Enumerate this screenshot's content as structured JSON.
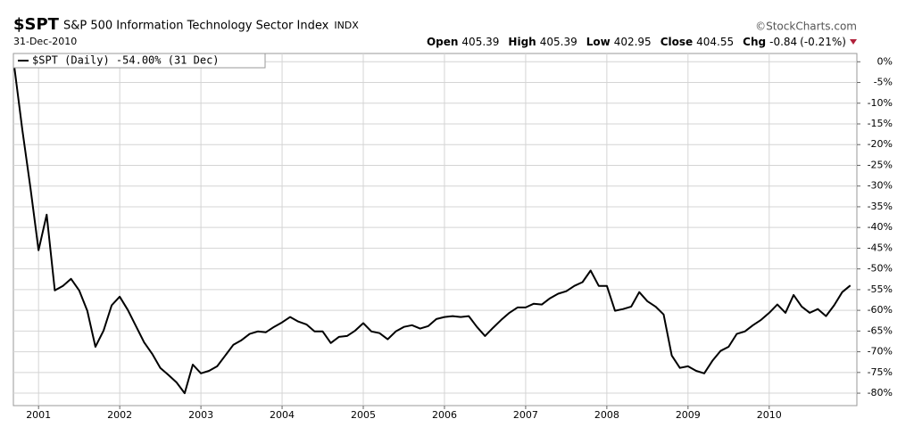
{
  "chart_data": {
    "type": "line",
    "symbol": "$SPT",
    "title": "S&P 500 Information Technology Sector Index",
    "exchange": "INDX",
    "source": "©StockCharts.com",
    "date": "31-Dec-2010",
    "quote": [
      {
        "label": "Open",
        "value": 405.39
      },
      {
        "label": "High",
        "value": 405.39
      },
      {
        "label": "Low",
        "value": 402.95
      },
      {
        "label": "Close",
        "value": 404.55
      },
      {
        "label": "Chg",
        "value": -0.84
      }
    ],
    "change_pct": "(-0.21%)",
    "x": [
      2000.7,
      2000.8,
      2000.9,
      2001.0,
      2001.1,
      2001.2,
      2001.3,
      2001.4,
      2001.5,
      2001.6,
      2001.7,
      2001.8,
      2001.9,
      2002.0,
      2002.1,
      2002.2,
      2002.3,
      2002.4,
      2002.5,
      2002.6,
      2002.7,
      2002.8,
      2002.9,
      2003.0,
      2003.1,
      2003.2,
      2003.3,
      2003.4,
      2003.5,
      2003.6,
      2003.7,
      2003.8,
      2003.9,
      2004.0,
      2004.1,
      2004.2,
      2004.3,
      2004.4,
      2004.5,
      2004.6,
      2004.7,
      2004.8,
      2004.9,
      2005.0,
      2005.1,
      2005.2,
      2005.3,
      2005.4,
      2005.5,
      2005.6,
      2005.7,
      2005.8,
      2005.9,
      2006.0,
      2006.1,
      2006.2,
      2006.3,
      2006.4,
      2006.5,
      2006.6,
      2006.7,
      2006.8,
      2006.9,
      2007.0,
      2007.1,
      2007.2,
      2007.3,
      2007.4,
      2007.5,
      2007.6,
      2007.7,
      2007.8,
      2007.9,
      2008.0,
      2008.1,
      2008.2,
      2008.3,
      2008.4,
      2008.5,
      2008.6,
      2008.7,
      2008.8,
      2008.9,
      2009.0,
      2009.1,
      2009.2,
      2009.3,
      2009.4,
      2009.5,
      2009.6,
      2009.7,
      2009.8,
      2009.9,
      2010.0,
      2010.1,
      2010.2,
      2010.3,
      2010.4,
      2010.5,
      2010.6,
      2010.7,
      2010.8,
      2010.9,
      2011.0
    ],
    "series": [
      {
        "name": "$SPT (Daily) -54.00% (31 Dec)",
        "color": "#000000",
        "values": [
          -1,
          -16.4,
          -30.4,
          -45.5,
          -36.9,
          -55.2,
          -54.1,
          -52.4,
          -55.2,
          -60.1,
          -68.8,
          -64.9,
          -58.8,
          -56.7,
          -59.9,
          -63.8,
          -67.7,
          -70.5,
          -73.9,
          -75.6,
          -77.4,
          -80.0,
          -73.1,
          -75.2,
          -74.6,
          -73.5,
          -70.9,
          -68.3,
          -67.2,
          -65.7,
          -65.1,
          -65.3,
          -64.0,
          -62.9,
          -61.6,
          -62.7,
          -63.4,
          -65.1,
          -65.1,
          -67.9,
          -66.4,
          -66.2,
          -64.9,
          -63.1,
          -65.1,
          -65.5,
          -67.0,
          -65.1,
          -64.0,
          -63.6,
          -64.4,
          -63.8,
          -62.1,
          -61.6,
          -61.4,
          -61.6,
          -61.4,
          -64.0,
          -66.2,
          -64.2,
          -62.3,
          -60.6,
          -59.3,
          -59.3,
          -58.4,
          -58.6,
          -57.1,
          -56.0,
          -55.4,
          -54.1,
          -53.2,
          -50.4,
          -54.1,
          -54.1,
          -60.1,
          -59.7,
          -59.1,
          -55.6,
          -57.8,
          -59.1,
          -61.0,
          -70.9,
          -73.9,
          -73.5,
          -74.6,
          -75.2,
          -72.2,
          -69.8,
          -68.8,
          -65.7,
          -65.1,
          -63.6,
          -62.3,
          -60.6,
          -58.6,
          -60.6,
          -56.3,
          -59.1,
          -60.6,
          -59.7,
          -61.4,
          -58.8,
          -55.6,
          -54.0
        ]
      }
    ],
    "xlim": [
      2000.69,
      2011.08
    ],
    "xticks": [
      2001,
      2002,
      2003,
      2004,
      2005,
      2006,
      2007,
      2008,
      2009,
      2010
    ],
    "ylim": [
      -83,
      2
    ],
    "yticks": [
      {
        "value": 0,
        "label": "0%"
      },
      {
        "value": -5,
        "label": "-5%"
      },
      {
        "value": -10,
        "label": "-10%"
      },
      {
        "value": -15,
        "label": "-15%"
      },
      {
        "value": -20,
        "label": "-20%"
      },
      {
        "value": -25,
        "label": "-25%"
      },
      {
        "value": -30,
        "label": "-30%"
      },
      {
        "value": -35,
        "label": "-35%"
      },
      {
        "value": -40,
        "label": "-40%"
      },
      {
        "value": -45,
        "label": "-45%"
      },
      {
        "value": -50,
        "label": "-50%"
      },
      {
        "value": -55,
        "label": "-55%"
      },
      {
        "value": -60,
        "label": "-60%"
      },
      {
        "value": -65,
        "label": "-65%"
      },
      {
        "value": -70,
        "label": "-70%"
      },
      {
        "value": -75,
        "label": "-75%"
      },
      {
        "value": -80,
        "label": "-80%"
      }
    ],
    "grid": true
  }
}
